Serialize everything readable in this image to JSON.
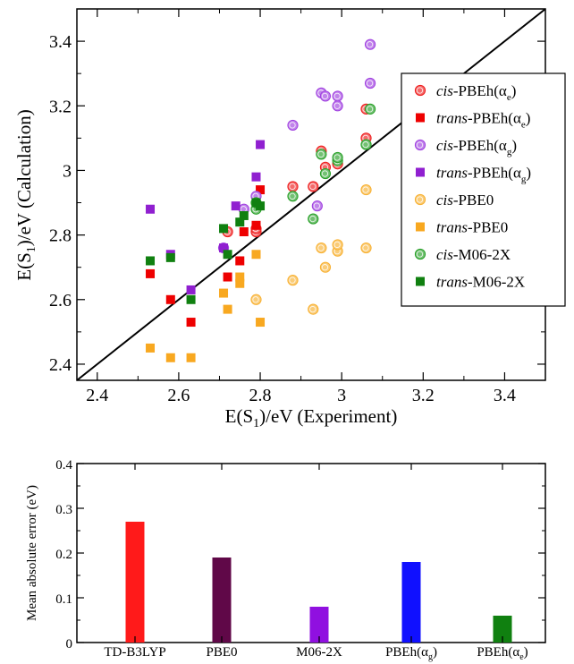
{
  "chart_data": [
    {
      "type": "scatter",
      "xlabel": {
        "main": "E(S",
        "sub": "1",
        "rest": ")/eV  (Experiment)"
      },
      "ylabel": {
        "main": "E(S",
        "sub": "1",
        "rest": ")/eV (Calculation)"
      },
      "xlim": [
        2.35,
        3.5
      ],
      "ylim": [
        2.35,
        3.5
      ],
      "xticks": [
        2.4,
        2.6,
        2.8,
        3.0,
        3.2,
        3.4
      ],
      "xtick_labels": [
        "2.4",
        "2.6",
        "2.8",
        "3",
        "3.2",
        "3.4"
      ],
      "yticks": [
        2.4,
        2.6,
        2.8,
        3.0,
        3.2,
        3.4
      ],
      "ytick_labels": [
        "2.4",
        "2.6",
        "2.8",
        "3",
        "3.2",
        "3.4"
      ],
      "grid": false,
      "legend_position": "right",
      "reference_line": "y = x",
      "series": [
        {
          "italic": "cis",
          "rest": "-PBEh(α",
          "sub": "e",
          "close": ")",
          "marker": "circle",
          "color": "#ee1c1c",
          "points": [
            [
              2.72,
              2.81
            ],
            [
              2.79,
              2.81
            ],
            [
              2.79,
              2.82
            ],
            [
              2.88,
              2.95
            ],
            [
              2.93,
              2.95
            ],
            [
              2.95,
              3.06
            ],
            [
              2.96,
              3.01
            ],
            [
              2.99,
              3.02
            ],
            [
              3.06,
              3.1
            ],
            [
              3.06,
              3.19
            ]
          ]
        },
        {
          "italic": "trans",
          "rest": "-PBEh(α",
          "sub": "e",
          "close": ")",
          "marker": "square",
          "color": "#ee0000",
          "points": [
            [
              2.53,
              2.68
            ],
            [
              2.58,
              2.6
            ],
            [
              2.63,
              2.53
            ],
            [
              2.72,
              2.67
            ],
            [
              2.75,
              2.72
            ],
            [
              2.76,
              2.81
            ],
            [
              2.79,
              2.83
            ],
            [
              2.8,
              2.94
            ]
          ]
        },
        {
          "italic": "cis",
          "rest": "-PBEh(α",
          "sub": "g",
          "close": ")",
          "marker": "circle",
          "color": "#a040e0",
          "points": [
            [
              2.71,
              2.76
            ],
            [
              2.76,
              2.88
            ],
            [
              2.79,
              2.92
            ],
            [
              2.88,
              3.14
            ],
            [
              2.94,
              2.89
            ],
            [
              2.95,
              3.24
            ],
            [
              2.96,
              3.23
            ],
            [
              2.99,
              3.2
            ],
            [
              2.99,
              3.23
            ],
            [
              3.07,
              3.27
            ],
            [
              3.07,
              3.39
            ]
          ]
        },
        {
          "italic": "trans",
          "rest": "-PBEh(α",
          "sub": "g",
          "close": ")",
          "marker": "square",
          "color": "#9020d0",
          "points": [
            [
              2.53,
              2.88
            ],
            [
              2.58,
              2.74
            ],
            [
              2.63,
              2.63
            ],
            [
              2.71,
              2.76
            ],
            [
              2.74,
              2.89
            ],
            [
              2.79,
              2.98
            ],
            [
              2.8,
              3.08
            ]
          ]
        },
        {
          "italic": "cis",
          "rest": "-PBE0",
          "sub": "",
          "close": "",
          "marker": "circle",
          "color": "#f8b030",
          "points": [
            [
              2.79,
              2.6
            ],
            [
              2.88,
              2.66
            ],
            [
              2.93,
              2.57
            ],
            [
              2.95,
              2.76
            ],
            [
              2.96,
              2.7
            ],
            [
              2.99,
              2.75
            ],
            [
              2.99,
              2.77
            ],
            [
              3.06,
              2.76
            ],
            [
              3.06,
              2.94
            ]
          ]
        },
        {
          "italic": "trans",
          "rest": "-PBE0",
          "sub": "",
          "close": "",
          "marker": "square",
          "color": "#f8a820",
          "points": [
            [
              2.53,
              2.45
            ],
            [
              2.58,
              2.42
            ],
            [
              2.63,
              2.42
            ],
            [
              2.71,
              2.62
            ],
            [
              2.72,
              2.57
            ],
            [
              2.75,
              2.65
            ],
            [
              2.75,
              2.67
            ],
            [
              2.79,
              2.74
            ],
            [
              2.8,
              2.53
            ]
          ]
        },
        {
          "italic": "cis",
          "rest": "-M06-2X",
          "sub": "",
          "close": "",
          "marker": "circle",
          "color": "#28a028",
          "points": [
            [
              2.79,
              2.88
            ],
            [
              2.79,
              2.9
            ],
            [
              2.88,
              2.92
            ],
            [
              2.93,
              2.85
            ],
            [
              2.95,
              3.05
            ],
            [
              2.96,
              2.99
            ],
            [
              2.99,
              3.03
            ],
            [
              2.99,
              3.04
            ],
            [
              3.06,
              3.08
            ],
            [
              3.07,
              3.19
            ]
          ]
        },
        {
          "italic": "trans",
          "rest": "-M06-2X",
          "sub": "",
          "close": "",
          "marker": "square",
          "color": "#108010",
          "points": [
            [
              2.53,
              2.72
            ],
            [
              2.58,
              2.73
            ],
            [
              2.63,
              2.6
            ],
            [
              2.71,
              2.82
            ],
            [
              2.72,
              2.74
            ],
            [
              2.75,
              2.84
            ],
            [
              2.76,
              2.86
            ],
            [
              2.79,
              2.9
            ],
            [
              2.8,
              2.89
            ]
          ]
        }
      ]
    },
    {
      "type": "bar",
      "ylabel": "Mean absolute error (eV)",
      "ylim": [
        0,
        0.4
      ],
      "yticks": [
        0,
        0.1,
        0.2,
        0.3,
        0.4
      ],
      "ytick_labels": [
        "0",
        "0.1",
        "0.2",
        "0.3",
        "0.4"
      ],
      "grid": false,
      "categories": [
        {
          "main": "TD-B3LYP",
          "sub": "",
          "close": ""
        },
        {
          "main": "PBE0",
          "sub": "",
          "close": ""
        },
        {
          "main": "M06-2X",
          "sub": "",
          "close": ""
        },
        {
          "main": "PBEh(α",
          "sub": "g",
          "close": ")"
        },
        {
          "main": "PBEh(α",
          "sub": "e",
          "close": ")"
        }
      ],
      "values": [
        0.27,
        0.19,
        0.08,
        0.18,
        0.06
      ],
      "colors": [
        "#ff1a1a",
        "#600848",
        "#9010e0",
        "#1010ff",
        "#108010"
      ]
    }
  ]
}
